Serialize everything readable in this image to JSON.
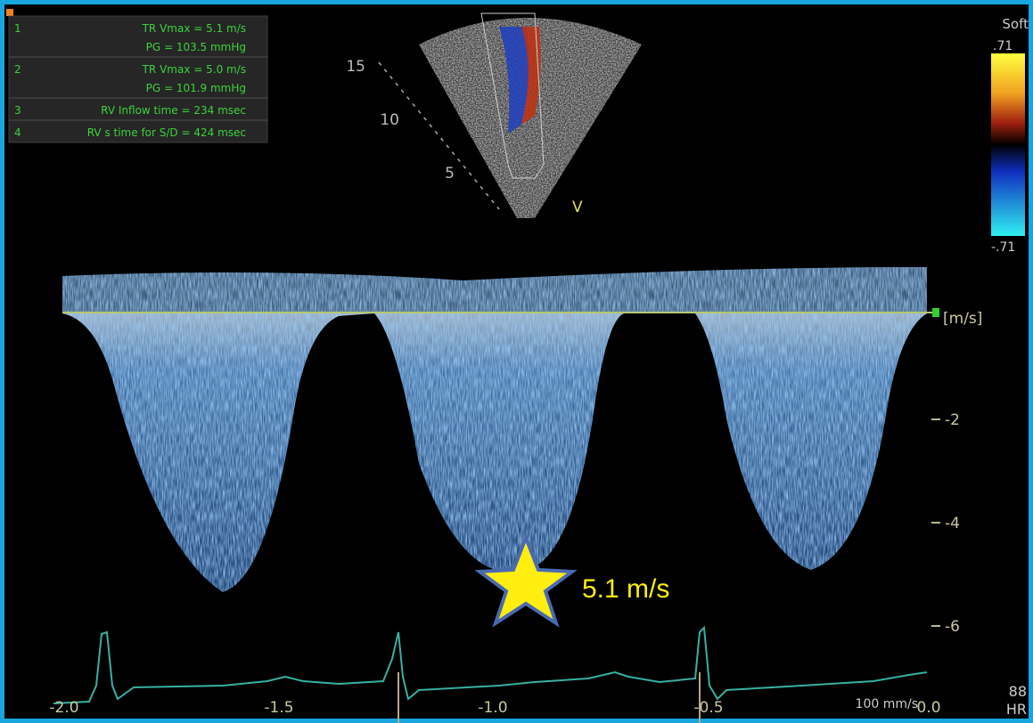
{
  "measurements": [
    {
      "index": "1",
      "lines": [
        "TR Vmax = 5.1 m/s",
        "PG = 103.5 mmHg"
      ]
    },
    {
      "index": "2",
      "lines": [
        "TR Vmax = 5.0 m/s",
        "PG = 101.9 mmHg"
      ]
    },
    {
      "index": "3",
      "lines": [
        "RV Inflow time = 234 msec"
      ]
    },
    {
      "index": "4",
      "lines": [
        "RV s time for S/D = 424 msec"
      ]
    }
  ],
  "sector": {
    "depth_marks": [
      "15",
      "10",
      "5"
    ],
    "view_label": "V"
  },
  "color_bar": {
    "title": "Soft",
    "top": ".71",
    "bottom": "-.71"
  },
  "velocity_axis": {
    "unit": "[m/s]",
    "ticks": [
      "-2",
      "-4",
      "-6"
    ]
  },
  "time_axis": {
    "ticks": [
      "-2.0",
      "-1.5",
      "-1.0",
      "-0.5",
      "0.0"
    ],
    "sweep": "100 mm/s"
  },
  "heart_rate": {
    "value": "88",
    "label": "HR"
  },
  "annotation": "5.1 m/s"
}
